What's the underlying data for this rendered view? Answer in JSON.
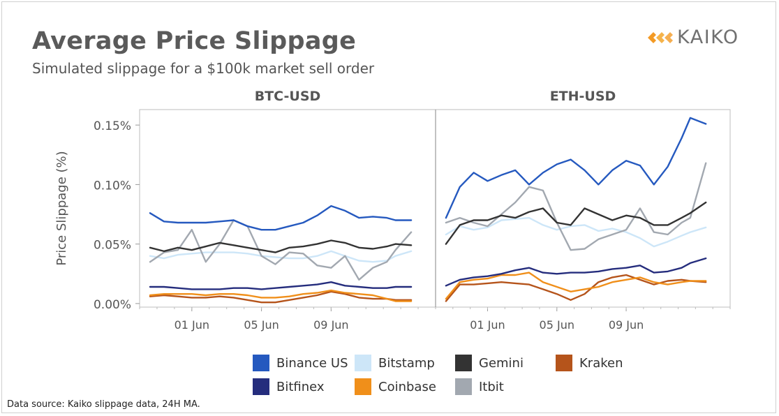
{
  "title": "Average Price Slippage",
  "subtitle": "Simulated slippage for a $100k market sell order",
  "logo_text": "KAIKO",
  "source": "Data source: Kaiko slippage data, 24H MA.",
  "colors": {
    "Binance US": "#2559bf",
    "Bitstamp": "#cde6f8",
    "Gemini": "#333333",
    "Kraken": "#b5541b",
    "Bitfinex": "#252d7d",
    "Coinbase": "#f08f1a",
    "Itbit": "#a2a8b0"
  },
  "legend": {
    "row1": [
      "Binance US",
      "Bitstamp",
      "Gemini",
      "Kraken"
    ],
    "row2": [
      "Bitfinex",
      "Coinbase",
      "Itbit"
    ]
  },
  "chart_data": {
    "type": "line",
    "ylabel": "Price Slippage (%)",
    "ylim": [
      -0.003,
      0.163
    ],
    "yticks": [
      0.0,
      0.05,
      0.1,
      0.15
    ],
    "ytick_labels": [
      "0.00%",
      "0.05%",
      "0.10%",
      "0.15%"
    ],
    "xlim": [
      -3.0,
      14.0
    ],
    "xticks": [
      0,
      4,
      8
    ],
    "xtick_labels": [
      "01 Jun",
      "05 Jun",
      "09 Jun"
    ],
    "x": [
      -2.4,
      -1.6,
      -0.8,
      0,
      0.8,
      1.6,
      2.4,
      3.2,
      4.0,
      4.8,
      5.6,
      6.4,
      7.2,
      8.0,
      8.8,
      9.6,
      10.4,
      11.2,
      11.7,
      12.6
    ],
    "panels": [
      {
        "title": "BTC-USD",
        "series": [
          {
            "name": "Binance US",
            "values": [
              0.076,
              0.069,
              0.068,
              0.068,
              0.068,
              0.069,
              0.07,
              0.065,
              0.062,
              0.062,
              0.065,
              0.068,
              0.074,
              0.082,
              0.078,
              0.072,
              0.073,
              0.072,
              0.07,
              0.07
            ]
          },
          {
            "name": "Bitstamp",
            "values": [
              0.04,
              0.038,
              0.041,
              0.042,
              0.043,
              0.043,
              0.043,
              0.042,
              0.04,
              0.039,
              0.038,
              0.038,
              0.04,
              0.044,
              0.04,
              0.036,
              0.035,
              0.036,
              0.04,
              0.044
            ]
          },
          {
            "name": "Gemini",
            "values": [
              0.047,
              0.044,
              0.047,
              0.045,
              0.048,
              0.051,
              0.049,
              0.047,
              0.045,
              0.043,
              0.047,
              0.048,
              0.05,
              0.053,
              0.051,
              0.047,
              0.046,
              0.048,
              0.05,
              0.049
            ]
          },
          {
            "name": "Kraken",
            "values": [
              0.006,
              0.007,
              0.006,
              0.005,
              0.005,
              0.006,
              0.005,
              0.003,
              0.001,
              0.001,
              0.003,
              0.005,
              0.007,
              0.01,
              0.008,
              0.005,
              0.004,
              0.004,
              0.003,
              0.003
            ]
          },
          {
            "name": "Bitfinex",
            "values": [
              0.014,
              0.014,
              0.013,
              0.012,
              0.012,
              0.012,
              0.013,
              0.013,
              0.012,
              0.013,
              0.014,
              0.015,
              0.016,
              0.018,
              0.015,
              0.014,
              0.013,
              0.013,
              0.014,
              0.014
            ]
          },
          {
            "name": "Coinbase",
            "values": [
              0.007,
              0.008,
              0.008,
              0.008,
              0.007,
              0.008,
              0.008,
              0.007,
              0.005,
              0.005,
              0.006,
              0.008,
              0.009,
              0.011,
              0.009,
              0.008,
              0.007,
              0.004,
              0.002,
              0.002
            ]
          },
          {
            "name": "Itbit",
            "values": [
              0.035,
              0.043,
              0.045,
              0.062,
              0.035,
              0.05,
              0.07,
              0.065,
              0.04,
              0.033,
              0.043,
              0.042,
              0.032,
              0.03,
              0.04,
              0.02,
              0.03,
              0.035,
              0.045,
              0.06
            ]
          }
        ]
      },
      {
        "title": "ETH-USD",
        "series": [
          {
            "name": "Binance US",
            "values": [
              0.072,
              0.098,
              0.11,
              0.103,
              0.108,
              0.112,
              0.1,
              0.11,
              0.117,
              0.121,
              0.112,
              0.1,
              0.112,
              0.12,
              0.116,
              0.1,
              0.115,
              0.139,
              0.156,
              0.151
            ]
          },
          {
            "name": "Bitstamp",
            "values": [
              0.058,
              0.065,
              0.062,
              0.064,
              0.07,
              0.071,
              0.072,
              0.066,
              0.062,
              0.065,
              0.066,
              0.061,
              0.063,
              0.06,
              0.055,
              0.048,
              0.052,
              0.057,
              0.06,
              0.064
            ]
          },
          {
            "name": "Gemini",
            "values": [
              0.05,
              0.066,
              0.07,
              0.07,
              0.074,
              0.072,
              0.077,
              0.08,
              0.068,
              0.066,
              0.08,
              0.075,
              0.07,
              0.074,
              0.072,
              0.066,
              0.066,
              0.072,
              0.076,
              0.085
            ]
          },
          {
            "name": "Kraken",
            "values": [
              0.002,
              0.016,
              0.016,
              0.017,
              0.018,
              0.017,
              0.016,
              0.012,
              0.008,
              0.003,
              0.008,
              0.018,
              0.022,
              0.024,
              0.02,
              0.016,
              0.019,
              0.02,
              0.019,
              0.018
            ]
          },
          {
            "name": "Bitfinex",
            "values": [
              0.015,
              0.02,
              0.022,
              0.023,
              0.025,
              0.028,
              0.03,
              0.026,
              0.025,
              0.026,
              0.026,
              0.027,
              0.029,
              0.03,
              0.032,
              0.026,
              0.027,
              0.03,
              0.034,
              0.038
            ]
          },
          {
            "name": "Coinbase",
            "values": [
              0.004,
              0.018,
              0.02,
              0.021,
              0.024,
              0.024,
              0.026,
              0.018,
              0.014,
              0.01,
              0.012,
              0.014,
              0.018,
              0.02,
              0.022,
              0.018,
              0.016,
              0.018,
              0.019,
              0.019
            ]
          },
          {
            "name": "Itbit",
            "values": [
              0.068,
              0.072,
              0.068,
              0.065,
              0.075,
              0.085,
              0.098,
              0.095,
              0.068,
              0.045,
              0.046,
              0.054,
              0.058,
              0.062,
              0.08,
              0.06,
              0.058,
              0.068,
              0.072,
              0.118
            ]
          }
        ]
      }
    ]
  }
}
